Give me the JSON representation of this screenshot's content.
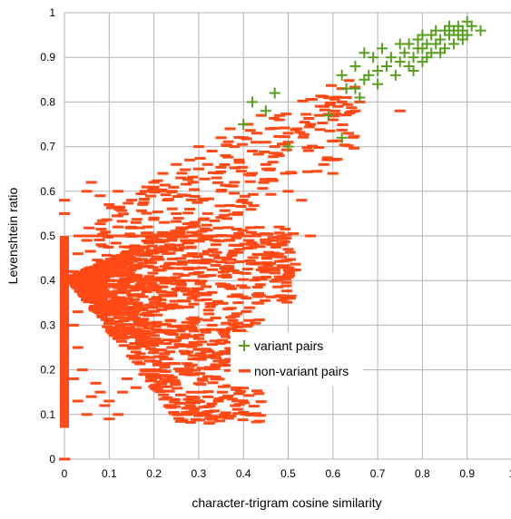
{
  "chart_data": {
    "type": "scatter",
    "title": "",
    "xlabel": "character-trigram cosine similarity",
    "ylabel": "Levenshtein ratio",
    "xlim": [
      0,
      1
    ],
    "ylim": [
      0,
      1
    ],
    "x_ticks": [
      "0",
      "0.1",
      "0.2",
      "0.3",
      "0.4",
      "0.5",
      "0.6",
      "0.7",
      "0.8",
      "0.9",
      "1"
    ],
    "y_ticks": [
      "0",
      "0.1",
      "0.2",
      "0.3",
      "0.4",
      "0.5",
      "0.6",
      "0.7",
      "0.8",
      "0.9",
      "1"
    ],
    "grid": true,
    "legend_position": "center-right",
    "series": [
      {
        "name": "variant pairs",
        "marker": "plus",
        "color": "#5a9e1f",
        "points": [
          [
            0.4,
            0.75
          ],
          [
            0.42,
            0.8
          ],
          [
            0.45,
            0.78
          ],
          [
            0.47,
            0.82
          ],
          [
            0.5,
            0.7
          ],
          [
            0.59,
            0.77
          ],
          [
            0.62,
            0.72
          ],
          [
            0.62,
            0.86
          ],
          [
            0.63,
            0.83
          ],
          [
            0.65,
            0.88
          ],
          [
            0.65,
            0.83
          ],
          [
            0.66,
            0.81
          ],
          [
            0.67,
            0.85
          ],
          [
            0.67,
            0.91
          ],
          [
            0.68,
            0.86
          ],
          [
            0.69,
            0.9
          ],
          [
            0.7,
            0.84
          ],
          [
            0.7,
            0.87
          ],
          [
            0.71,
            0.92
          ],
          [
            0.72,
            0.88
          ],
          [
            0.73,
            0.9
          ],
          [
            0.74,
            0.86
          ],
          [
            0.75,
            0.89
          ],
          [
            0.75,
            0.93
          ],
          [
            0.76,
            0.91
          ],
          [
            0.77,
            0.88
          ],
          [
            0.77,
            0.93
          ],
          [
            0.78,
            0.9
          ],
          [
            0.78,
            0.87
          ],
          [
            0.79,
            0.92
          ],
          [
            0.79,
            0.94
          ],
          [
            0.8,
            0.89
          ],
          [
            0.8,
            0.95
          ],
          [
            0.8,
            0.92
          ],
          [
            0.81,
            0.9
          ],
          [
            0.81,
            0.93
          ],
          [
            0.82,
            0.91
          ],
          [
            0.82,
            0.95
          ],
          [
            0.83,
            0.96
          ],
          [
            0.83,
            0.93
          ],
          [
            0.84,
            0.94
          ],
          [
            0.84,
            0.91
          ],
          [
            0.85,
            0.96
          ],
          [
            0.85,
            0.92
          ],
          [
            0.86,
            0.95
          ],
          [
            0.86,
            0.97
          ],
          [
            0.87,
            0.93
          ],
          [
            0.87,
            0.96
          ],
          [
            0.88,
            0.95
          ],
          [
            0.88,
            0.97
          ],
          [
            0.89,
            0.94
          ],
          [
            0.89,
            0.96
          ],
          [
            0.9,
            0.98
          ],
          [
            0.9,
            0.95
          ],
          [
            0.91,
            0.97
          ],
          [
            0.93,
            0.96
          ]
        ]
      },
      {
        "name": "non-variant pairs",
        "marker": "dash",
        "color": "#ff4a17",
        "points": [
          [
            0.0,
            0.0
          ],
          [
            0.0,
            0.58
          ],
          [
            0.0,
            0.55
          ],
          [
            0.05,
            0.6
          ],
          [
            0.06,
            0.62
          ],
          [
            0.08,
            0.59
          ],
          [
            0.1,
            0.57
          ],
          [
            0.12,
            0.6
          ],
          [
            0.15,
            0.58
          ],
          [
            0.18,
            0.6
          ],
          [
            0.2,
            0.62
          ],
          [
            0.22,
            0.64
          ],
          [
            0.24,
            0.6
          ],
          [
            0.25,
            0.66
          ],
          [
            0.26,
            0.63
          ],
          [
            0.28,
            0.67
          ],
          [
            0.3,
            0.65
          ],
          [
            0.3,
            0.7
          ],
          [
            0.32,
            0.66
          ],
          [
            0.33,
            0.69
          ],
          [
            0.34,
            0.63
          ],
          [
            0.35,
            0.72
          ],
          [
            0.36,
            0.68
          ],
          [
            0.37,
            0.74
          ],
          [
            0.38,
            0.7
          ],
          [
            0.39,
            0.67
          ],
          [
            0.4,
            0.72
          ],
          [
            0.41,
            0.75
          ],
          [
            0.42,
            0.69
          ],
          [
            0.43,
            0.73
          ],
          [
            0.44,
            0.77
          ],
          [
            0.45,
            0.71
          ],
          [
            0.46,
            0.74
          ],
          [
            0.47,
            0.7
          ],
          [
            0.48,
            0.76
          ],
          [
            0.5,
            0.73
          ],
          [
            0.5,
            0.71
          ],
          [
            0.52,
            0.74
          ],
          [
            0.55,
            0.75
          ],
          [
            0.57,
            0.77
          ],
          [
            0.58,
            0.79
          ],
          [
            0.6,
            0.76
          ],
          [
            0.62,
            0.8
          ],
          [
            0.63,
            0.81
          ],
          [
            0.65,
            0.78
          ],
          [
            0.75,
            0.78
          ],
          [
            0.62,
            0.83
          ],
          [
            0.66,
            0.8
          ],
          [
            0.24,
            0.25
          ],
          [
            0.26,
            0.2
          ],
          [
            0.3,
            0.27
          ],
          [
            0.33,
            0.3
          ],
          [
            0.35,
            0.29
          ],
          [
            0.38,
            0.32
          ],
          [
            0.43,
            0.35
          ],
          [
            0.36,
            0.43
          ],
          [
            0.5,
            0.47
          ],
          [
            0.32,
            0.55
          ],
          [
            0.48,
            0.52
          ],
          [
            0.5,
            0.6
          ],
          [
            0.53,
            0.58
          ],
          [
            0.55,
            0.5
          ],
          [
            0.6,
            0.64
          ],
          [
            0.1,
            0.09
          ],
          [
            0.09,
            0.12
          ],
          [
            0.1,
            0.13
          ],
          [
            0.12,
            0.1
          ],
          [
            0.13,
            0.15
          ],
          [
            0.08,
            0.15
          ],
          [
            0.06,
            0.14
          ],
          [
            0.07,
            0.17
          ],
          [
            0.14,
            0.18
          ],
          [
            0.16,
            0.16
          ],
          [
            0.18,
            0.2
          ],
          [
            0.19,
            0.22
          ],
          [
            0.2,
            0.19
          ],
          [
            0.22,
            0.23
          ],
          [
            0.21,
            0.26
          ],
          [
            0.18,
            0.27
          ],
          [
            0.16,
            0.24
          ],
          [
            0.05,
            0.1
          ],
          [
            0.03,
            0.13
          ],
          [
            0.04,
            0.2
          ],
          [
            0.02,
            0.18
          ],
          [
            0.03,
            0.25
          ],
          [
            0.02,
            0.3
          ],
          [
            0.03,
            0.33
          ],
          [
            0.04,
            0.38
          ],
          [
            0.02,
            0.42
          ],
          [
            0.03,
            0.46
          ],
          [
            0.05,
            0.49
          ],
          [
            0.08,
            0.5
          ],
          [
            0.12,
            0.52
          ],
          [
            0.16,
            0.53
          ],
          [
            0.2,
            0.54
          ],
          [
            0.25,
            0.55
          ],
          [
            0.28,
            0.56
          ],
          [
            0.31,
            0.58
          ],
          [
            0.35,
            0.6
          ],
          [
            0.38,
            0.62
          ],
          [
            0.42,
            0.64
          ],
          [
            0.45,
            0.66
          ],
          [
            0.48,
            0.68
          ]
        ]
      }
    ]
  }
}
